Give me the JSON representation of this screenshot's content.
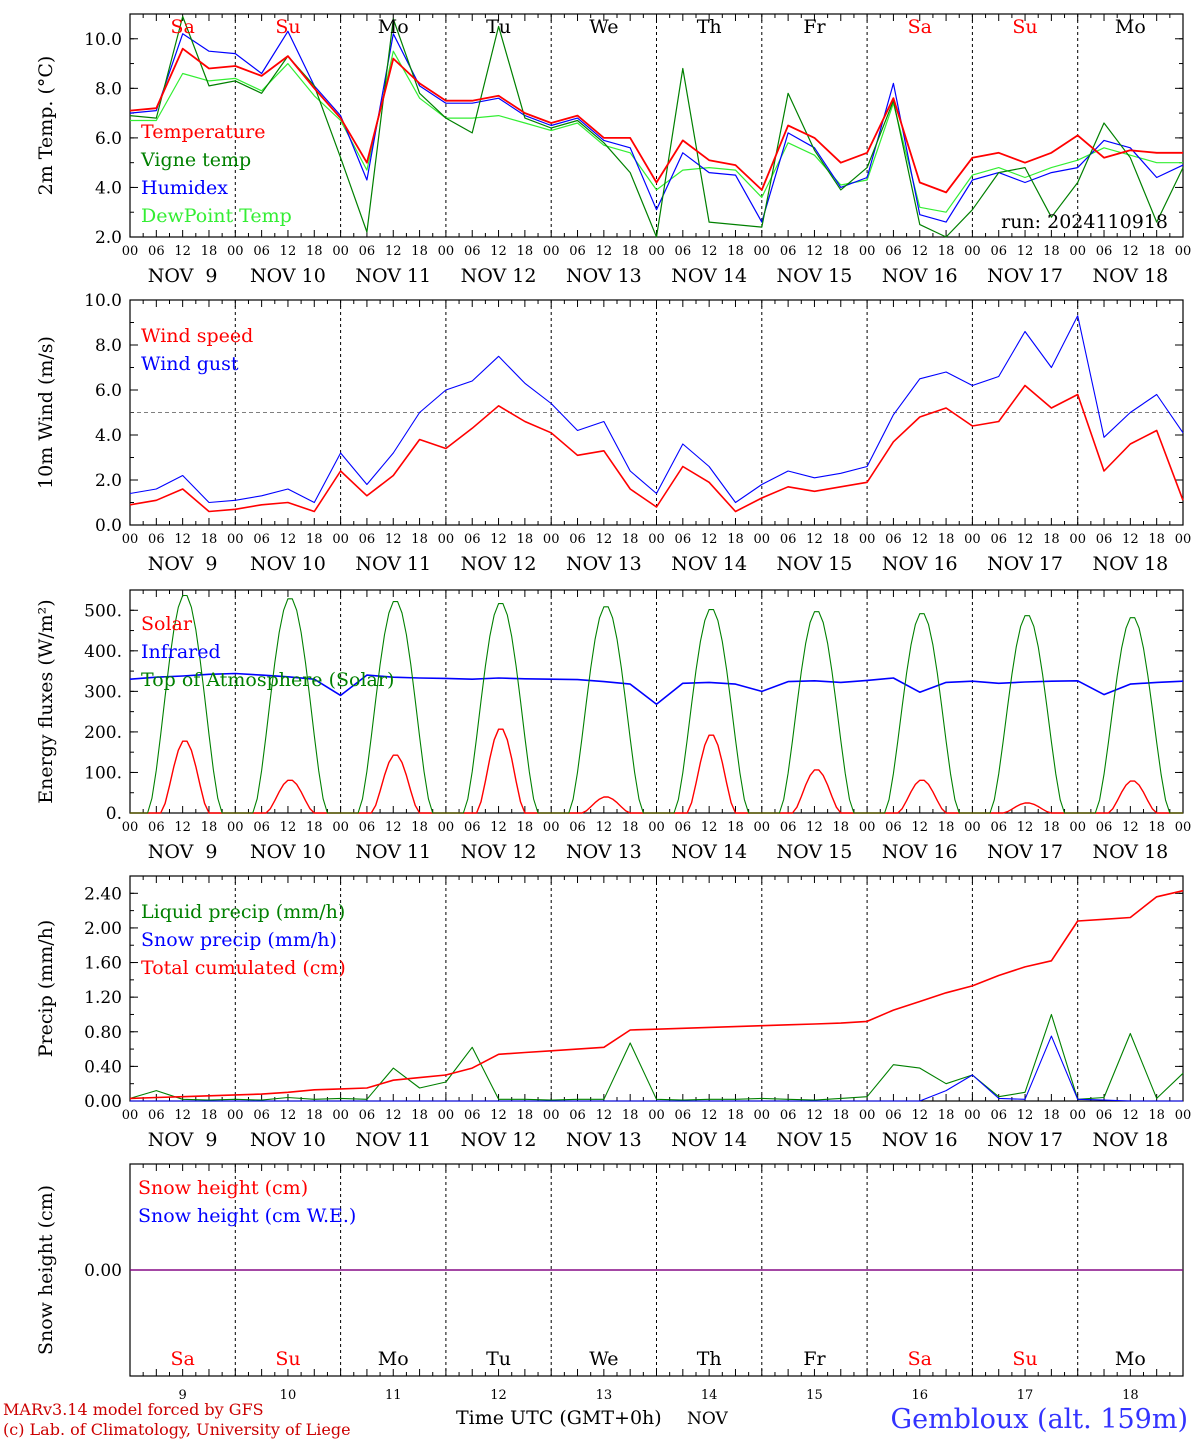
{
  "colors": {
    "red": "#ff0000",
    "green": "#008000",
    "blue": "#0000ff",
    "lightgreen": "#33ee33",
    "purple": "#800080",
    "weekend": "#ff0000",
    "weekday": "#000000",
    "station": "#3333ff",
    "footer": "#cc0000"
  },
  "days": [
    {
      "dow": "Sa",
      "date": "NOV  9",
      "num": "9",
      "weekend": true
    },
    {
      "dow": "Su",
      "date": "NOV 10",
      "num": "10",
      "weekend": true
    },
    {
      "dow": "Mo",
      "date": "NOV 11",
      "num": "11",
      "weekend": false
    },
    {
      "dow": "Tu",
      "date": "NOV 12",
      "num": "12",
      "weekend": false
    },
    {
      "dow": "We",
      "date": "NOV 13",
      "num": "13",
      "weekend": false
    },
    {
      "dow": "Th",
      "date": "NOV 14",
      "num": "14",
      "weekend": false
    },
    {
      "dow": "Fr",
      "date": "NOV 15",
      "num": "15",
      "weekend": false
    },
    {
      "dow": "Sa",
      "date": "NOV 16",
      "num": "16",
      "weekend": true
    },
    {
      "dow": "Su",
      "date": "NOV 17",
      "num": "17",
      "weekend": true
    },
    {
      "dow": "Mo",
      "date": "NOV 18",
      "num": "18",
      "weekend": false
    }
  ],
  "hour_labels": [
    "00",
    "06",
    "12",
    "18"
  ],
  "hour_label_end": "00",
  "footer": {
    "model_line": "MARv3.14 model forced by GFS",
    "lab_line": "(c) Lab. of Climatology, University of Liege",
    "xaxis_title": "Time UTC (GMT+0h)",
    "month": "NOV",
    "station": "Gembloux (alt. 159m)"
  },
  "chart_data": [
    {
      "type": "line",
      "ylabel": "2m Temp. (°C)",
      "ylim": [
        2,
        11
      ],
      "yticks": [
        2,
        4,
        6,
        8,
        10
      ],
      "ytick_labels": [
        "2.0",
        "4.0",
        "6.0",
        "8.0",
        "10.0"
      ],
      "annotation": "run: 2024110918",
      "show_dow": "top",
      "x_hours": [
        0,
        6,
        12,
        18,
        24,
        30,
        36,
        42,
        48,
        54,
        60,
        66,
        72,
        78,
        84,
        90,
        96,
        102,
        108,
        114,
        120,
        126,
        132,
        138,
        144,
        150,
        156,
        162,
        168,
        174,
        180,
        186,
        192,
        198,
        204,
        210,
        216,
        222,
        228,
        234,
        240
      ],
      "series": [
        {
          "name": "Temperature",
          "color": "red",
          "width": 1.8,
          "values": [
            7.1,
            7.2,
            9.6,
            8.8,
            8.9,
            8.5,
            9.3,
            8.0,
            6.8,
            5.0,
            9.2,
            8.2,
            7.5,
            7.5,
            7.7,
            7.0,
            6.6,
            6.9,
            6.0,
            6.0,
            4.2,
            5.9,
            5.1,
            4.9,
            3.9,
            6.5,
            6.0,
            5.0,
            5.4,
            7.6,
            4.2,
            3.8,
            5.2,
            5.4,
            5.0,
            5.4,
            6.1,
            5.2,
            5.5,
            5.4,
            5.4
          ]
        },
        {
          "name": "Vigne temp",
          "color": "green",
          "width": 1.2,
          "values": [
            6.9,
            6.8,
            10.9,
            8.1,
            8.3,
            7.8,
            9.3,
            8.1,
            5.2,
            2.2,
            10.8,
            7.8,
            6.8,
            6.2,
            10.5,
            6.8,
            6.4,
            6.7,
            5.8,
            4.6,
            1.5,
            8.8,
            2.6,
            2.5,
            2.4,
            7.8,
            5.5,
            3.9,
            4.8,
            7.5,
            2.5,
            2.0,
            3.1,
            4.6,
            4.8,
            2.8,
            4.2,
            6.6,
            5.2,
            2.6,
            4.8
          ]
        },
        {
          "name": "Humidex",
          "color": "blue",
          "width": 1.2,
          "values": [
            7.0,
            7.1,
            10.2,
            9.5,
            9.4,
            8.6,
            10.3,
            8.1,
            6.9,
            4.3,
            10.2,
            8.1,
            7.4,
            7.4,
            7.6,
            6.9,
            6.5,
            6.8,
            5.9,
            5.6,
            3.1,
            5.4,
            4.6,
            4.5,
            2.6,
            6.2,
            5.6,
            4.0,
            4.4,
            8.2,
            2.9,
            2.6,
            4.3,
            4.6,
            4.2,
            4.6,
            4.8,
            5.9,
            5.6,
            4.4,
            4.9
          ]
        },
        {
          "name": "DewPoint Temp",
          "color": "lightgreen",
          "width": 1.2,
          "values": [
            6.7,
            6.7,
            8.6,
            8.3,
            8.4,
            7.9,
            9.0,
            7.7,
            6.7,
            4.7,
            9.5,
            7.6,
            6.8,
            6.8,
            6.9,
            6.6,
            6.3,
            6.6,
            5.7,
            5.4,
            3.9,
            4.7,
            4.8,
            4.7,
            3.6,
            5.8,
            5.3,
            4.1,
            4.3,
            7.4,
            3.2,
            3.0,
            4.5,
            4.8,
            4.4,
            4.8,
            5.1,
            5.6,
            5.3,
            5.0,
            5.0
          ]
        }
      ]
    },
    {
      "type": "line",
      "ylabel": "10m Wind (m/s)",
      "ylim": [
        0,
        10
      ],
      "yticks": [
        0,
        2,
        4,
        6,
        8,
        10
      ],
      "ytick_labels": [
        "0.0",
        "2.0",
        "4.0",
        "6.0",
        "8.0",
        "10.0"
      ],
      "ref_line": 5,
      "x_hours": [
        0,
        6,
        12,
        18,
        24,
        30,
        36,
        42,
        48,
        54,
        60,
        66,
        72,
        78,
        84,
        90,
        96,
        102,
        108,
        114,
        120,
        126,
        132,
        138,
        144,
        150,
        156,
        162,
        168,
        174,
        180,
        186,
        192,
        198,
        204,
        210,
        216,
        222,
        228,
        234,
        240
      ],
      "series": [
        {
          "name": "Wind speed",
          "color": "red",
          "width": 1.6,
          "values": [
            0.9,
            1.1,
            1.6,
            0.6,
            0.7,
            0.9,
            1.0,
            0.6,
            2.4,
            1.3,
            2.2,
            3.8,
            3.4,
            4.3,
            5.3,
            4.6,
            4.1,
            3.1,
            3.3,
            1.6,
            0.8,
            2.6,
            1.9,
            0.6,
            1.2,
            1.7,
            1.5,
            1.7,
            1.9,
            3.7,
            4.8,
            5.2,
            4.4,
            4.6,
            6.2,
            5.2,
            5.8,
            2.4,
            3.6,
            4.2,
            1.1
          ]
        },
        {
          "name": "Wind gust",
          "color": "blue",
          "width": 1.1,
          "values": [
            1.4,
            1.6,
            2.2,
            1.0,
            1.1,
            1.3,
            1.6,
            1.0,
            3.2,
            1.8,
            3.2,
            5.0,
            6.0,
            6.4,
            7.5,
            6.3,
            5.4,
            4.2,
            4.6,
            2.4,
            1.4,
            3.6,
            2.6,
            1.0,
            1.8,
            2.4,
            2.1,
            2.3,
            2.6,
            4.9,
            6.5,
            6.8,
            6.2,
            6.6,
            8.6,
            7.0,
            9.3,
            3.9,
            5.0,
            5.8,
            4.1
          ]
        }
      ]
    },
    {
      "type": "line",
      "ylabel": "Energy fluxes (W/m²)",
      "ylim": [
        0,
        550
      ],
      "yticks": [
        0,
        100,
        200,
        300,
        400,
        500
      ],
      "ytick_labels": [
        "0.",
        "100.",
        "200.",
        "300.",
        "400.",
        "500."
      ],
      "series": [
        {
          "name": "Solar",
          "color": "red",
          "width": 1.4,
          "peaks": [
            180,
            82,
            145,
            210,
            40,
            195,
            108,
            82,
            25,
            80
          ]
        },
        {
          "name": "Infrared",
          "color": "blue",
          "width": 1.6,
          "values": [
            330,
            335,
            338,
            342,
            344,
            340,
            336,
            330,
            290,
            340,
            335,
            333,
            332,
            330,
            333,
            331,
            330,
            329,
            324,
            318,
            268,
            320,
            322,
            318,
            300,
            324,
            326,
            322,
            327,
            333,
            298,
            322,
            325,
            320,
            323,
            325,
            326,
            292,
            318,
            322,
            325
          ]
        },
        {
          "name": "Top of Atmosphere (Solar)",
          "color": "green",
          "width": 1.1,
          "peaks": [
            540,
            532,
            525,
            520,
            512,
            505,
            500,
            495,
            490,
            485
          ]
        }
      ]
    },
    {
      "type": "line",
      "ylabel": "Precip (mm/h)",
      "ylim": [
        0,
        2.6
      ],
      "yticks": [
        0,
        0.4,
        0.8,
        1.2,
        1.6,
        2.0,
        2.4
      ],
      "ytick_labels": [
        "0.00",
        "0.40",
        "0.80",
        "1.20",
        "1.60",
        "2.00",
        "2.40"
      ],
      "x_hours": [
        0,
        6,
        12,
        18,
        24,
        30,
        36,
        42,
        48,
        54,
        60,
        66,
        72,
        78,
        84,
        90,
        96,
        102,
        108,
        114,
        120,
        126,
        132,
        138,
        144,
        150,
        156,
        162,
        168,
        174,
        180,
        186,
        192,
        198,
        204,
        210,
        216,
        222,
        228,
        234,
        240
      ],
      "series": [
        {
          "name": "Liquid precip (mm/h)",
          "color": "green",
          "width": 1.1,
          "values": [
            0.03,
            0.12,
            0.02,
            0.01,
            0.02,
            0.01,
            0.04,
            0.02,
            0.03,
            0.02,
            0.38,
            0.15,
            0.22,
            0.62,
            0.02,
            0.02,
            0.01,
            0.02,
            0.02,
            0.67,
            0.02,
            0.01,
            0.02,
            0.02,
            0.03,
            0.02,
            0.01,
            0.03,
            0.05,
            0.42,
            0.38,
            0.2,
            0.3,
            0.05,
            0.1,
            1.0,
            0.02,
            0.04,
            0.78,
            0.03,
            0.32
          ]
        },
        {
          "name": "Snow precip (mm/h)",
          "color": "blue",
          "width": 1.1,
          "values": [
            0,
            0,
            0,
            0,
            0,
            0,
            0,
            0,
            0,
            0,
            0,
            0,
            0,
            0,
            0,
            0,
            0,
            0,
            0,
            0,
            0,
            0,
            0,
            0,
            0,
            0,
            0,
            0,
            0,
            0,
            0,
            0.12,
            0.3,
            0.03,
            0.02,
            0.75,
            0.02,
            0.01,
            0,
            0,
            0
          ]
        },
        {
          "name": "Total cumulated (cm)",
          "color": "red",
          "width": 1.6,
          "values": [
            0.03,
            0.04,
            0.05,
            0.06,
            0.07,
            0.08,
            0.1,
            0.13,
            0.14,
            0.15,
            0.24,
            0.27,
            0.3,
            0.38,
            0.54,
            0.56,
            0.58,
            0.6,
            0.62,
            0.82,
            0.83,
            0.84,
            0.85,
            0.86,
            0.87,
            0.88,
            0.89,
            0.9,
            0.92,
            1.05,
            1.15,
            1.25,
            1.33,
            1.45,
            1.55,
            1.62,
            2.08,
            2.1,
            2.12,
            2.36,
            2.43
          ]
        }
      ]
    },
    {
      "type": "line",
      "ylabel": "Snow height (cm)",
      "ylim": [
        -1,
        1
      ],
      "yticks": [
        0
      ],
      "ytick_labels": [
        "0.00"
      ],
      "show_dow": "bottom",
      "series": [
        {
          "name": "Snow height (cm)",
          "color": "red",
          "width": 1.2,
          "values": [
            0,
            0
          ]
        },
        {
          "name": "Snow height (cm W.E.)",
          "color": "blue",
          "width": 1.2,
          "values": [
            0,
            0
          ]
        }
      ]
    }
  ]
}
